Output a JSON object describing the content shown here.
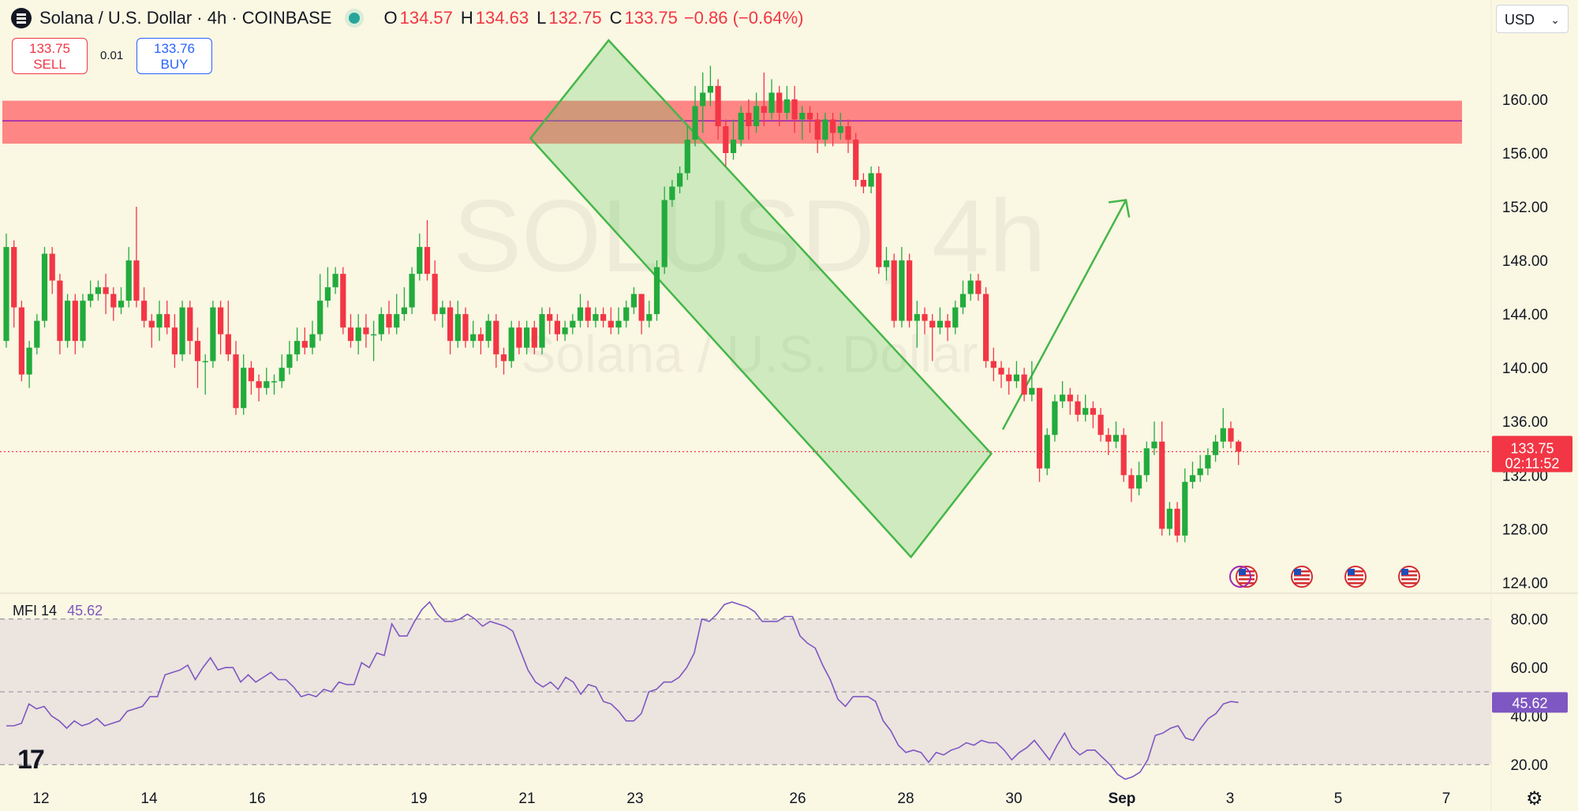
{
  "header": {
    "symbol_title": "Solana / U.S. Dollar · 4h · COINBASE",
    "o_label": "O",
    "o_value": "134.57",
    "h_label": "H",
    "h_value": "134.63",
    "l_label": "L",
    "l_value": "132.75",
    "c_label": "C",
    "c_value": "133.75",
    "change": "−0.86 (−0.64%)"
  },
  "trade": {
    "sell_price": "133.75",
    "sell_label": "SELL",
    "spread": "0.01",
    "buy_price": "133.76",
    "buy_label": "BUY"
  },
  "currency": "USD",
  "watermark": {
    "symbol": "SOLUSD, 4h",
    "name": "Solana / U.S. Dollar"
  },
  "price_tag": {
    "price": "133.75",
    "countdown": "02:11:52"
  },
  "mfi": {
    "name": "MFI",
    "length": "14",
    "value": "45.62",
    "color": "#7e57c2"
  },
  "colors": {
    "up": "#22ab3c",
    "down": "#f23645",
    "zone": "#ff5a5f",
    "channel": "#45b649",
    "mfi_band": "#ece4de",
    "background": "#faf7e3"
  },
  "icons": [
    "tradingview-logo-icon",
    "settings-icon",
    "us-flag-event-icon",
    "chevron-down-icon"
  ],
  "chart_data": [
    {
      "type": "candlestick",
      "title": "Solana / U.S. Dollar · 4h · COINBASE",
      "price_axis_labels": [
        "160.00",
        "156.00",
        "152.00",
        "148.00",
        "144.00",
        "140.00",
        "136.00",
        "132.00",
        "128.00",
        "124.00"
      ],
      "ylim": [
        123.2,
        164.7
      ],
      "time_axis_labels": [
        "12",
        "14",
        "16",
        "19",
        "21",
        "23",
        "26",
        "28",
        "30",
        "Sep",
        "3",
        "5",
        "7"
      ],
      "last_price": 133.75,
      "resistance_zone": [
        156.7,
        159.9
      ],
      "resistance_line": 158.4,
      "descending_channel": "falling channel from about 160 (Aug 24) to about 126 (Sep 2)",
      "projection": "arrow up from about 136 toward about 152",
      "candles": [
        [
          142.0,
          149.0,
          150.0,
          141.5
        ],
        [
          149.0,
          144.5,
          149.5,
          143.0
        ],
        [
          144.5,
          139.5,
          145.0,
          139.0
        ],
        [
          139.5,
          141.5,
          142.0,
          138.5
        ],
        [
          141.5,
          143.5,
          144.0,
          141.0
        ],
        [
          143.5,
          148.5,
          149.0,
          143.0
        ],
        [
          148.5,
          146.5,
          149.0,
          145.5
        ],
        [
          146.5,
          142.0,
          147.0,
          141.0
        ],
        [
          142.0,
          145.0,
          145.5,
          141.5
        ],
        [
          145.0,
          142.0,
          145.5,
          141.0
        ],
        [
          142.0,
          145.0,
          145.5,
          141.5
        ],
        [
          145.0,
          145.5,
          146.5,
          144.5
        ],
        [
          145.5,
          146.0,
          146.5,
          145.0
        ],
        [
          146.0,
          145.5,
          147.0,
          144.0
        ],
        [
          145.5,
          144.5,
          146.0,
          143.5
        ],
        [
          144.5,
          145.0,
          146.0,
          144.0
        ],
        [
          145.0,
          148.0,
          149.0,
          144.5
        ],
        [
          148.0,
          145.0,
          152.0,
          144.5
        ],
        [
          145.0,
          143.5,
          146.0,
          143.0
        ],
        [
          143.5,
          143.0,
          144.0,
          141.5
        ],
        [
          143.0,
          144.0,
          145.0,
          142.0
        ],
        [
          144.0,
          143.0,
          145.0,
          142.5
        ],
        [
          143.0,
          141.0,
          144.0,
          140.0
        ],
        [
          141.0,
          144.5,
          145.0,
          140.5
        ],
        [
          144.5,
          142.0,
          145.0,
          141.0
        ],
        [
          142.0,
          140.5,
          143.0,
          138.5
        ],
        [
          140.5,
          140.5,
          141.0,
          138.0
        ],
        [
          140.5,
          144.5,
          145.0,
          140.0
        ],
        [
          144.5,
          142.5,
          145.0,
          141.0
        ],
        [
          142.5,
          141.0,
          145.0,
          140.5
        ],
        [
          141.0,
          137.0,
          142.0,
          136.5
        ],
        [
          137.0,
          140.0,
          141.0,
          136.5
        ],
        [
          140.0,
          139.0,
          140.5,
          138.0
        ],
        [
          139.0,
          138.5,
          139.5,
          137.5
        ],
        [
          138.5,
          139.0,
          140.0,
          138.0
        ],
        [
          139.0,
          139.0,
          139.5,
          138.0
        ],
        [
          139.0,
          140.0,
          141.0,
          138.5
        ],
        [
          140.0,
          141.0,
          142.0,
          139.5
        ],
        [
          141.0,
          142.0,
          143.0,
          140.5
        ],
        [
          142.0,
          141.5,
          143.0,
          141.0
        ],
        [
          141.5,
          142.5,
          143.5,
          141.0
        ],
        [
          142.5,
          145.0,
          147.0,
          142.0
        ],
        [
          145.0,
          146.0,
          147.5,
          144.5
        ],
        [
          146.0,
          147.0,
          147.5,
          145.5
        ],
        [
          147.0,
          143.0,
          147.5,
          142.5
        ],
        [
          143.0,
          142.0,
          144.0,
          141.5
        ],
        [
          142.0,
          143.0,
          144.0,
          141.0
        ],
        [
          143.0,
          142.5,
          144.0,
          141.5
        ],
        [
          142.5,
          142.5,
          143.5,
          140.5
        ],
        [
          142.5,
          144.0,
          144.5,
          142.0
        ],
        [
          144.0,
          143.0,
          145.0,
          142.5
        ],
        [
          143.0,
          144.0,
          145.5,
          142.5
        ],
        [
          144.0,
          144.5,
          146.0,
          143.5
        ],
        [
          144.5,
          147.0,
          147.5,
          144.0
        ],
        [
          147.0,
          149.0,
          150.0,
          146.5
        ],
        [
          149.0,
          147.0,
          151.0,
          146.5
        ],
        [
          147.0,
          144.0,
          148.0,
          143.5
        ],
        [
          144.0,
          144.5,
          145.0,
          143.0
        ],
        [
          144.5,
          142.0,
          145.0,
          141.0
        ],
        [
          142.0,
          144.0,
          145.0,
          141.5
        ],
        [
          144.0,
          142.0,
          144.5,
          141.5
        ],
        [
          142.0,
          142.5,
          143.5,
          141.5
        ],
        [
          142.5,
          142.0,
          143.0,
          141.0
        ],
        [
          142.0,
          143.5,
          144.0,
          141.5
        ],
        [
          143.5,
          141.0,
          144.0,
          140.0
        ],
        [
          141.0,
          140.5,
          141.5,
          139.5
        ],
        [
          140.5,
          143.0,
          143.5,
          140.0
        ],
        [
          143.0,
          141.5,
          143.5,
          141.0
        ],
        [
          141.5,
          143.0,
          143.5,
          141.0
        ],
        [
          143.0,
          141.5,
          143.5,
          141.0
        ],
        [
          141.5,
          144.0,
          144.5,
          141.0
        ],
        [
          144.0,
          143.5,
          144.5,
          142.5
        ],
        [
          143.5,
          142.5,
          144.0,
          142.0
        ],
        [
          142.5,
          143.0,
          143.5,
          142.0
        ],
        [
          143.0,
          143.5,
          144.0,
          142.5
        ],
        [
          143.5,
          144.5,
          145.5,
          143.0
        ],
        [
          144.5,
          143.5,
          145.0,
          143.0
        ],
        [
          143.5,
          144.0,
          144.5,
          143.0
        ],
        [
          144.0,
          143.5,
          144.5,
          143.0
        ],
        [
          143.5,
          143.0,
          144.5,
          142.5
        ],
        [
          143.0,
          143.5,
          144.5,
          142.5
        ],
        [
          143.5,
          144.5,
          145.0,
          143.0
        ],
        [
          144.5,
          145.5,
          146.0,
          144.0
        ],
        [
          145.5,
          143.5,
          145.5,
          142.5
        ],
        [
          143.5,
          144.0,
          145.0,
          143.0
        ],
        [
          144.0,
          147.5,
          148.0,
          143.5
        ],
        [
          147.5,
          152.5,
          153.5,
          147.0
        ],
        [
          152.5,
          153.5,
          154.0,
          152.0
        ],
        [
          153.5,
          154.5,
          155.0,
          153.0
        ],
        [
          154.5,
          157.0,
          158.0,
          154.0
        ],
        [
          157.0,
          159.5,
          161.0,
          156.5
        ],
        [
          159.5,
          160.5,
          162.0,
          157.5
        ],
        [
          160.5,
          161.0,
          162.5,
          159.5
        ],
        [
          161.0,
          158.0,
          161.5,
          157.0
        ],
        [
          158.0,
          156.0,
          158.5,
          155.0
        ],
        [
          156.0,
          157.0,
          158.5,
          155.5
        ],
        [
          157.0,
          159.0,
          159.5,
          156.5
        ],
        [
          159.0,
          158.0,
          160.0,
          157.0
        ],
        [
          158.0,
          159.5,
          160.5,
          157.5
        ],
        [
          159.5,
          159.0,
          162.0,
          158.0
        ],
        [
          159.0,
          160.5,
          161.5,
          158.5
        ],
        [
          160.5,
          159.0,
          161.0,
          158.0
        ],
        [
          159.0,
          160.0,
          161.0,
          158.5
        ],
        [
          160.0,
          158.5,
          161.0,
          157.5
        ],
        [
          158.5,
          159.0,
          159.5,
          157.0
        ],
        [
          159.0,
          158.5,
          159.5,
          157.5
        ],
        [
          158.5,
          157.0,
          159.0,
          156.0
        ],
        [
          157.0,
          158.5,
          159.0,
          156.5
        ],
        [
          158.5,
          157.5,
          159.0,
          156.5
        ],
        [
          157.5,
          158.0,
          159.0,
          157.0
        ],
        [
          158.0,
          157.0,
          158.5,
          156.0
        ],
        [
          157.0,
          154.0,
          157.5,
          153.5
        ],
        [
          154.0,
          153.5,
          154.5,
          153.0
        ],
        [
          153.5,
          154.5,
          155.0,
          153.0
        ],
        [
          154.5,
          147.5,
          155.0,
          147.0
        ],
        [
          147.5,
          148.0,
          149.0,
          146.5
        ],
        [
          148.0,
          143.5,
          148.5,
          143.0
        ],
        [
          143.5,
          148.0,
          149.0,
          143.0
        ],
        [
          148.0,
          143.5,
          148.5,
          143.0
        ],
        [
          143.5,
          144.0,
          145.0,
          141.5
        ],
        [
          144.0,
          143.5,
          144.5,
          142.5
        ],
        [
          143.5,
          143.0,
          144.0,
          140.5
        ],
        [
          143.0,
          143.5,
          144.5,
          142.5
        ],
        [
          143.5,
          143.0,
          144.0,
          142.0
        ],
        [
          143.0,
          144.5,
          145.0,
          142.5
        ],
        [
          144.5,
          145.5,
          146.5,
          144.0
        ],
        [
          145.5,
          146.5,
          147.0,
          145.0
        ],
        [
          146.5,
          145.5,
          147.0,
          145.0
        ],
        [
          145.5,
          140.5,
          146.0,
          140.0
        ],
        [
          140.5,
          140.0,
          141.5,
          139.0
        ],
        [
          140.0,
          139.5,
          140.5,
          138.5
        ],
        [
          139.5,
          139.0,
          140.0,
          138.0
        ],
        [
          139.0,
          139.5,
          140.5,
          138.5
        ],
        [
          139.5,
          138.0,
          140.0,
          137.5
        ],
        [
          138.0,
          138.5,
          140.5,
          137.5
        ],
        [
          138.5,
          132.5,
          138.5,
          131.5
        ],
        [
          132.5,
          135.0,
          135.5,
          132.0
        ],
        [
          135.0,
          137.5,
          138.0,
          134.5
        ],
        [
          137.5,
          138.0,
          139.0,
          137.0
        ],
        [
          138.0,
          137.5,
          138.5,
          136.5
        ],
        [
          137.5,
          136.5,
          138.0,
          136.0
        ],
        [
          136.5,
          137.0,
          138.0,
          136.0
        ],
        [
          137.0,
          136.5,
          137.5,
          135.5
        ],
        [
          136.5,
          135.0,
          137.0,
          134.5
        ],
        [
          135.0,
          134.5,
          135.5,
          133.5
        ],
        [
          134.5,
          135.0,
          136.0,
          134.0
        ],
        [
          135.0,
          132.0,
          135.5,
          131.5
        ],
        [
          132.0,
          131.0,
          132.5,
          130.0
        ],
        [
          131.0,
          132.0,
          133.0,
          130.5
        ],
        [
          132.0,
          134.0,
          134.5,
          131.5
        ],
        [
          134.0,
          134.5,
          136.0,
          133.5
        ],
        [
          134.5,
          128.0,
          136.0,
          127.5
        ],
        [
          128.0,
          129.5,
          130.0,
          127.5
        ],
        [
          129.5,
          127.5,
          130.0,
          127.0
        ],
        [
          127.5,
          131.5,
          132.5,
          127.0
        ],
        [
          131.5,
          132.0,
          133.0,
          131.0
        ],
        [
          132.0,
          132.5,
          133.5,
          131.5
        ],
        [
          132.5,
          133.5,
          134.0,
          132.0
        ],
        [
          133.5,
          134.5,
          135.0,
          133.0
        ],
        [
          134.5,
          135.5,
          137.0,
          134.0
        ],
        [
          135.5,
          134.5,
          136.0,
          134.0
        ],
        [
          134.5,
          133.75,
          134.63,
          132.75
        ]
      ]
    },
    {
      "type": "line",
      "title": "MFI 14",
      "y_axis_labels": [
        "80.00",
        "60.00",
        "40.00",
        "20.00"
      ],
      "ylim": [
        10,
        88
      ],
      "bands": [
        20,
        50,
        80
      ],
      "last_value": 45.62,
      "values": [
        36,
        36,
        37,
        45,
        43,
        44,
        40,
        38,
        35,
        38,
        36,
        37,
        39,
        36,
        37,
        38,
        42,
        43,
        44,
        48,
        48,
        57,
        58,
        59,
        61,
        55,
        60,
        64,
        59,
        60,
        60,
        54,
        57,
        54,
        56,
        58,
        55,
        55,
        52,
        48,
        49,
        48,
        51,
        50,
        54,
        53,
        53,
        62,
        60,
        66,
        65,
        78,
        73,
        73,
        79,
        84,
        87,
        82,
        79,
        79,
        80,
        82,
        80,
        77,
        79,
        78,
        77,
        75,
        67,
        59,
        54,
        52,
        54,
        51,
        56,
        54,
        49,
        53,
        52,
        46,
        45,
        42,
        38,
        38,
        41,
        50,
        51,
        54,
        54,
        56,
        60,
        66,
        80,
        79,
        82,
        86,
        87,
        86,
        85,
        83,
        79,
        79,
        79,
        81,
        81,
        73,
        70,
        68,
        61,
        55,
        47,
        44,
        48,
        48,
        48,
        46,
        38,
        34,
        28,
        25,
        26,
        25,
        21,
        25,
        24,
        26,
        27,
        29,
        28,
        30,
        29,
        29,
        26,
        22,
        25,
        27,
        30,
        26,
        22,
        28,
        33,
        27,
        24,
        26,
        26,
        23,
        20,
        16,
        14,
        15,
        17,
        22,
        32,
        33,
        35,
        36,
        31,
        30,
        35,
        39,
        41,
        45,
        46,
        45.62
      ]
    }
  ]
}
